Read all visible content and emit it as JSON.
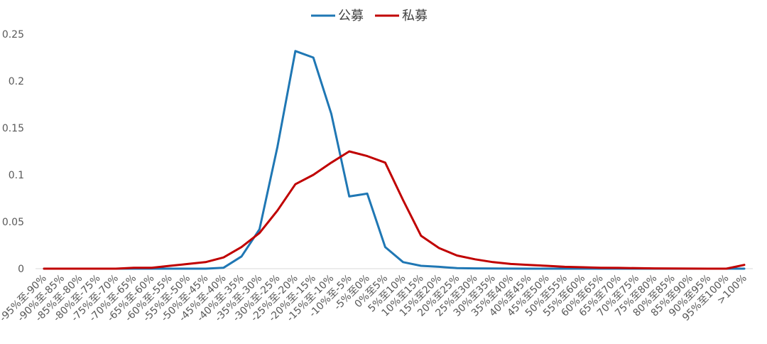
{
  "chart_data": {
    "type": "line",
    "title": "",
    "xlabel": "",
    "ylabel": "",
    "ylim": [
      0,
      0.25
    ],
    "yticks": [
      "0",
      "0.05",
      "0.1",
      "0.15",
      "0.2",
      "0.25"
    ],
    "grid": false,
    "legend_position": "top-center",
    "categories": [
      "-95%至-90%",
      "-90%至-85%",
      "-85%至-80%",
      "-80%至-75%",
      "-75%至-70%",
      "-70%至-65%",
      "-65%至-60%",
      "-60%至-55%",
      "-55%至-50%",
      "-50%至-45%",
      "-45%至-40%",
      "-40%至-35%",
      "-35%至-30%",
      "-30%至-25%",
      "-25%至-20%",
      "-20%至-15%",
      "-15%至-10%",
      "-10%至-5%",
      "-5%至0%",
      "0%至5%",
      "5%至10%",
      "10%至15%",
      "15%至20%",
      "20%至25%",
      "25%至30%",
      "30%至35%",
      "35%至40%",
      "40%至45%",
      "45%至50%",
      "50%至55%",
      "55%至60%",
      "60%至65%",
      "65%至70%",
      "70%至75%",
      "75%至80%",
      "80%至85%",
      "85%至90%",
      "90%至95%",
      "95%至100%",
      ">100%"
    ],
    "series": [
      {
        "name": "公募",
        "color": "#1f77b4",
        "values": [
          0,
          0,
          0,
          0,
          0,
          0,
          0,
          0,
          0,
          0,
          0.001,
          0.013,
          0.042,
          0.13,
          0.232,
          0.225,
          0.165,
          0.077,
          0.08,
          0.023,
          0.007,
          0.003,
          0.002,
          0.0005,
          0.0003,
          0.0002,
          0.0001,
          0,
          0,
          0,
          0,
          0,
          0,
          0,
          0,
          0,
          0,
          0,
          0,
          0
        ]
      },
      {
        "name": "私募",
        "color": "#c00000",
        "values": [
          0,
          0,
          0,
          0,
          0,
          0.001,
          0.001,
          0.003,
          0.005,
          0.007,
          0.012,
          0.023,
          0.038,
          0.062,
          0.09,
          0.1,
          0.113,
          0.125,
          0.12,
          0.113,
          0.073,
          0.035,
          0.022,
          0.014,
          0.01,
          0.007,
          0.005,
          0.004,
          0.003,
          0.002,
          0.0015,
          0.001,
          0.0008,
          0.0005,
          0.0003,
          0.0002,
          0.0001,
          0,
          0,
          0.004
        ]
      }
    ]
  }
}
